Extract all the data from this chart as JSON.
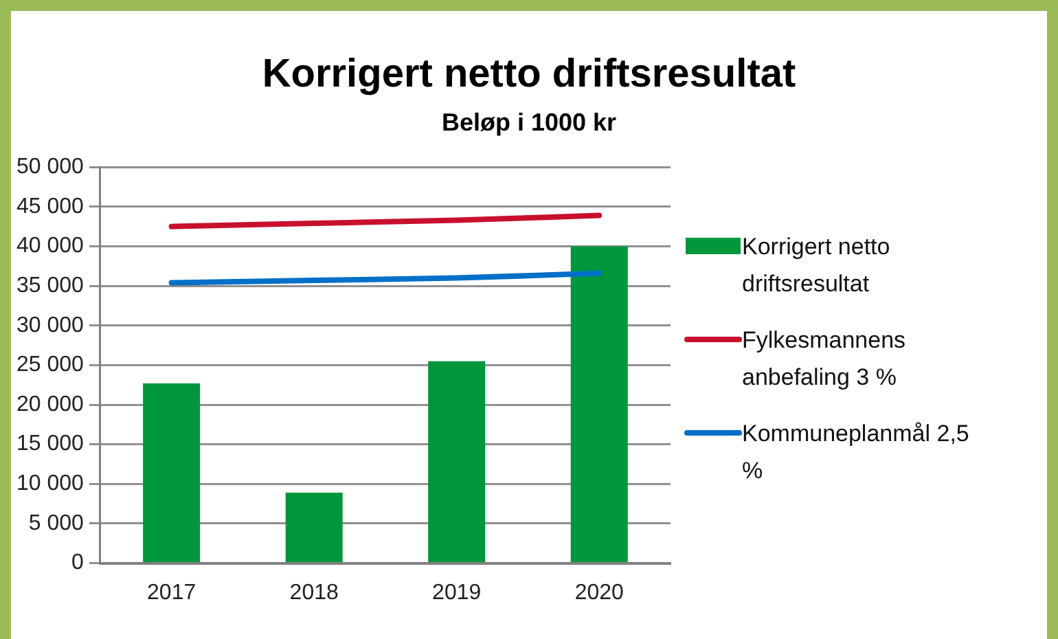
{
  "chart_data": {
    "type": "bar",
    "title": "Korrigert netto driftsresultat",
    "subtitle": "Beløp i 1000 kr",
    "categories": [
      "2017",
      "2018",
      "2019",
      "2020"
    ],
    "series": [
      {
        "name": "Korrigert netto driftsresultat",
        "color": "#00963c",
        "values": [
          22700,
          8900,
          25500,
          40000
        ]
      },
      {
        "name": "Fylkesmannens anbefaling 3 %",
        "type": "line",
        "color": "#c8102e",
        "values": [
          42500,
          42900,
          43300,
          43900
        ]
      },
      {
        "name": "Kommuneplanmål 2,5 %",
        "type": "line",
        "color": "#0070c8",
        "values": [
          35400,
          35700,
          36000,
          36600
        ]
      }
    ],
    "ylim": [
      0,
      50000
    ],
    "yticks": [
      {
        "value": 0,
        "label": "0"
      },
      {
        "value": 5000,
        "label": "5 000"
      },
      {
        "value": 10000,
        "label": "10 000"
      },
      {
        "value": 15000,
        "label": "15 000"
      },
      {
        "value": 20000,
        "label": "20 000"
      },
      {
        "value": 25000,
        "label": "25 000"
      },
      {
        "value": 30000,
        "label": "30 000"
      },
      {
        "value": 35000,
        "label": "35 000"
      },
      {
        "value": 40000,
        "label": "40 000"
      },
      {
        "value": 45000,
        "label": "45 000"
      },
      {
        "value": 50000,
        "label": "50 000"
      }
    ],
    "grid": "y",
    "legend": "right",
    "marker": "none"
  }
}
